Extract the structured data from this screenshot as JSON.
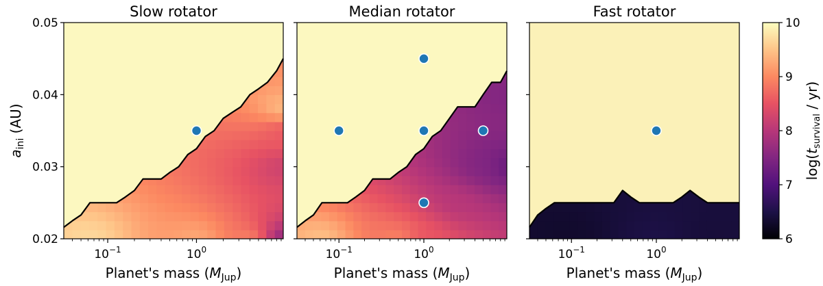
{
  "chart_data": [
    {
      "type": "heatmap",
      "title": "Slow rotator",
      "xlabel_prefix": "Planet's mass (",
      "xlabel_sym": "M",
      "xlabel_sub": "Jup",
      "xlabel_suffix": ")",
      "ylabel_sym": "a",
      "ylabel_sub": "ini",
      "ylabel_suffix": " (AU)",
      "x_scale": "log",
      "xlim": [
        0.032,
        9.5
      ],
      "ylim": [
        0.02,
        0.05
      ],
      "xticks": [
        0.1,
        1.0
      ],
      "xtick_labels": [
        "10",
        "10"
      ],
      "xtick_exponents": [
        "−1",
        "0"
      ],
      "yticks": [
        0.02,
        0.03,
        0.04,
        0.05
      ],
      "ytick_labels": [
        "0.02",
        "0.03",
        "0.04",
        "0.05"
      ],
      "show_yticklabels": true,
      "contour_line": {
        "x": [
          0.032,
          0.04,
          0.05,
          0.063,
          0.08,
          0.1,
          0.126,
          0.158,
          0.2,
          0.25,
          0.316,
          0.4,
          0.5,
          0.63,
          0.8,
          1.0,
          1.26,
          1.58,
          2.0,
          2.5,
          3.16,
          4.0,
          5.0,
          6.3,
          8.0,
          9.5
        ],
        "y": [
          0.0216,
          0.0225,
          0.0233,
          0.025,
          0.025,
          0.025,
          0.025,
          0.0258,
          0.0267,
          0.0283,
          0.0283,
          0.0283,
          0.0292,
          0.03,
          0.0317,
          0.0325,
          0.0342,
          0.035,
          0.0367,
          0.0375,
          0.0383,
          0.04,
          0.0408,
          0.0417,
          0.0433,
          0.045
        ]
      },
      "color_field": [
        {
          "x": 0.06,
          "y": 0.02,
          "value": 9.7
        },
        {
          "x": 1.0,
          "y": 0.02,
          "value": 9.3
        },
        {
          "x": 4.0,
          "y": 0.02,
          "value": 9.0
        },
        {
          "x": 9.5,
          "y": 0.02,
          "value": 7.5
        },
        {
          "x": 9.5,
          "y": 0.03,
          "value": 8.2
        },
        {
          "x": 9.5,
          "y": 0.035,
          "value": 8.5
        },
        {
          "x": 9.5,
          "y": 0.038,
          "value": 9.5
        }
      ],
      "markers": [
        {
          "x": 1.0,
          "y": 0.035
        }
      ]
    },
    {
      "type": "heatmap",
      "title": "Median rotator",
      "xlabel_prefix": "Planet's mass (",
      "xlabel_sym": "M",
      "xlabel_sub": "Jup",
      "xlabel_suffix": ")",
      "x_scale": "log",
      "xlim": [
        0.032,
        9.5
      ],
      "ylim": [
        0.02,
        0.05
      ],
      "xticks": [
        0.1,
        1.0
      ],
      "xtick_labels": [
        "10",
        "10"
      ],
      "xtick_exponents": [
        "−1",
        "0"
      ],
      "yticks": [
        0.02,
        0.03,
        0.04,
        0.05
      ],
      "show_yticklabels": false,
      "contour_line": {
        "x": [
          0.032,
          0.04,
          0.05,
          0.063,
          0.08,
          0.1,
          0.126,
          0.158,
          0.2,
          0.25,
          0.316,
          0.4,
          0.5,
          0.63,
          0.8,
          1.0,
          1.26,
          1.58,
          2.0,
          2.5,
          3.16,
          4.0,
          5.0,
          6.3,
          8.0,
          9.5
        ],
        "y": [
          0.0216,
          0.0225,
          0.0233,
          0.025,
          0.025,
          0.025,
          0.025,
          0.0258,
          0.0267,
          0.0283,
          0.0283,
          0.0283,
          0.0292,
          0.03,
          0.0317,
          0.0325,
          0.0342,
          0.035,
          0.0367,
          0.0383,
          0.0383,
          0.0383,
          0.04,
          0.0417,
          0.0417,
          0.0433
        ]
      },
      "color_field": [
        {
          "x": 0.06,
          "y": 0.02,
          "value": 9.5
        },
        {
          "x": 0.5,
          "y": 0.02,
          "value": 9.0
        },
        {
          "x": 1.0,
          "y": 0.02,
          "value": 8.5
        },
        {
          "x": 2.5,
          "y": 0.025,
          "value": 8.0
        },
        {
          "x": 5.0,
          "y": 0.03,
          "value": 7.5
        },
        {
          "x": 9.5,
          "y": 0.03,
          "value": 7.2
        },
        {
          "x": 9.5,
          "y": 0.04,
          "value": 7.5
        }
      ],
      "markers": [
        {
          "x": 1.0,
          "y": 0.045
        },
        {
          "x": 0.1,
          "y": 0.035
        },
        {
          "x": 1.0,
          "y": 0.035
        },
        {
          "x": 5.0,
          "y": 0.035
        },
        {
          "x": 1.0,
          "y": 0.025
        }
      ]
    },
    {
      "type": "heatmap",
      "title": "Fast rotator",
      "xlabel_prefix": "Planet's mass (",
      "xlabel_sym": "M",
      "xlabel_sub": "Jup",
      "xlabel_suffix": ")",
      "x_scale": "log",
      "xlim": [
        0.032,
        9.5
      ],
      "ylim": [
        0.02,
        0.05
      ],
      "xticks": [
        0.1,
        1.0
      ],
      "xtick_labels": [
        "10",
        "10"
      ],
      "xtick_exponents": [
        "−1",
        "0"
      ],
      "yticks": [
        0.02,
        0.03,
        0.04,
        0.05
      ],
      "show_yticklabels": false,
      "contour_line": {
        "x": [
          0.032,
          0.04,
          0.05,
          0.063,
          0.1,
          0.2,
          0.316,
          0.4,
          0.5,
          0.63,
          0.8,
          1.0,
          1.58,
          2.0,
          2.5,
          3.16,
          4.0,
          5.0,
          6.3,
          8.0,
          9.5
        ],
        "y": [
          0.0216,
          0.0233,
          0.0242,
          0.025,
          0.025,
          0.025,
          0.025,
          0.0267,
          0.0258,
          0.025,
          0.025,
          0.025,
          0.025,
          0.0258,
          0.0267,
          0.0258,
          0.025,
          0.025,
          0.025,
          0.025,
          0.025
        ]
      },
      "color_field": [
        {
          "x": 0.1,
          "y": 0.02,
          "value": 6.3
        },
        {
          "x": 1.0,
          "y": 0.02,
          "value": 6.5
        },
        {
          "x": 4.0,
          "y": 0.02,
          "value": 6.4
        }
      ],
      "markers": [
        {
          "x": 1.0,
          "y": 0.035
        }
      ]
    }
  ],
  "colorbar": {
    "label_prefix": "log(",
    "label_sym": "t",
    "label_sub": "survival",
    "label_suffix": " / yr)",
    "colormap": "magma",
    "range": [
      6,
      10
    ],
    "ticks": [
      6,
      7,
      8,
      9,
      10
    ],
    "tick_labels": [
      "6",
      "7",
      "8",
      "9",
      "10"
    ]
  },
  "colors": {
    "line": "#000000",
    "marker_fill": "#1f77b4",
    "marker_edge": "#ffffff",
    "colormap_stops": [
      "#000004",
      "#1d1147",
      "#51127c",
      "#822681",
      "#b73779",
      "#e75263",
      "#fc8961",
      "#fec488",
      "#fcfdbf"
    ]
  }
}
